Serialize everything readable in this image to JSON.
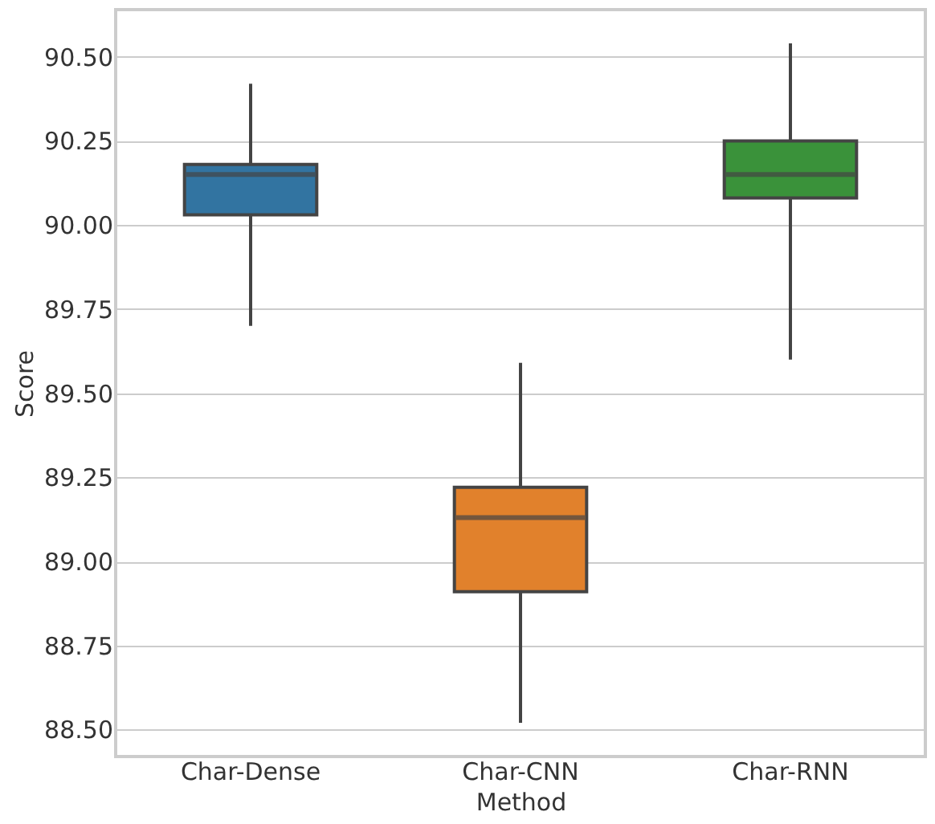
{
  "chart_data": {
    "type": "box",
    "xlabel": "Method",
    "ylabel": "Score",
    "categories": [
      "Char-Dense",
      "Char-CNN",
      "Char-RNN"
    ],
    "colors": [
      "#3274a1",
      "#e1812c",
      "#3a923a"
    ],
    "boxes": [
      {
        "low": 89.7,
        "q1": 90.03,
        "median": 90.15,
        "q3": 90.18,
        "high": 90.42
      },
      {
        "low": 88.52,
        "q1": 88.91,
        "median": 89.13,
        "q3": 89.22,
        "high": 89.59
      },
      {
        "low": 89.6,
        "q1": 90.08,
        "median": 90.15,
        "q3": 90.25,
        "high": 90.54
      }
    ],
    "ylim": [
      88.42,
      90.64
    ],
    "yticks": [
      {
        "value": 88.5,
        "label": "88.50"
      },
      {
        "value": 88.75,
        "label": "88.75"
      },
      {
        "value": 89,
        "label": "89.00"
      },
      {
        "value": 89.25,
        "label": "89.25"
      },
      {
        "value": 89.5,
        "label": "89.50"
      },
      {
        "value": 89.75,
        "label": "89.75"
      },
      {
        "value": 90,
        "label": "90.00"
      },
      {
        "value": 90.25,
        "label": "90.25"
      },
      {
        "value": 90.5,
        "label": "90.50"
      }
    ],
    "grid": "y"
  }
}
